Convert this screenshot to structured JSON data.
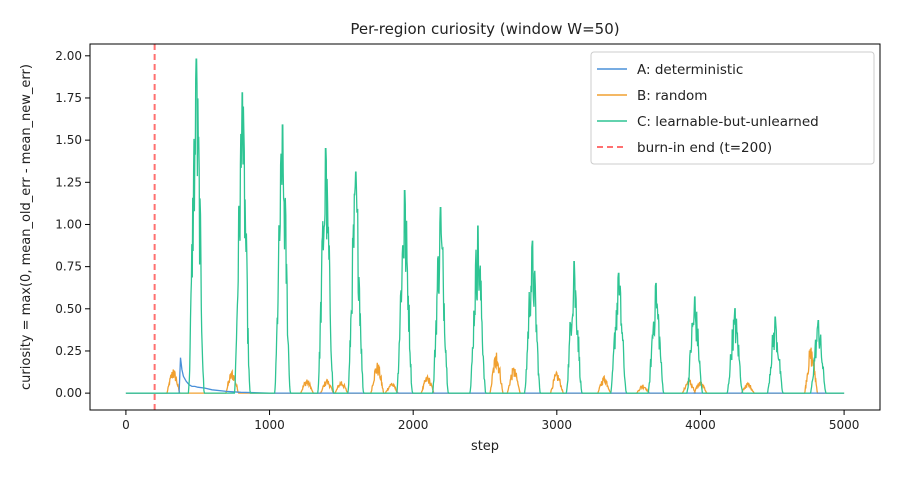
{
  "chart_data": {
    "type": "line",
    "title": "Per-region curiosity (window W=50)",
    "xlabel": "step",
    "ylabel": "curiosity = max(0, mean_old_err - mean_new_err)",
    "xlim": [
      -250,
      5250
    ],
    "ylim": [
      -0.1,
      2.07
    ],
    "xticks": [
      0,
      1000,
      2000,
      3000,
      4000,
      5000
    ],
    "xtick_labels": [
      "0",
      "1000",
      "2000",
      "3000",
      "4000",
      "5000"
    ],
    "yticks": [
      0.0,
      0.25,
      0.5,
      0.75,
      1.0,
      1.25,
      1.5,
      1.75,
      2.0
    ],
    "ytick_labels": [
      "0.00",
      "0.25",
      "0.50",
      "0.75",
      "1.00",
      "1.25",
      "1.50",
      "1.75",
      "2.00"
    ],
    "grid": false,
    "legend_position": "top-right",
    "series": [
      {
        "name": "A: deterministic",
        "color": "#4a90d9",
        "x": [
          0,
          370,
          380,
          390,
          400,
          420,
          440,
          460,
          480,
          500,
          550,
          600,
          700,
          800,
          1000,
          5000
        ],
        "y": [
          0,
          0,
          0.21,
          0.14,
          0.1,
          0.07,
          0.05,
          0.04,
          0.04,
          0.035,
          0.03,
          0.02,
          0.01,
          0.005,
          0,
          0
        ]
      },
      {
        "name": "B: random",
        "color": "#f0a030",
        "bursts": [
          {
            "center": 330,
            "peak": 0.14
          },
          {
            "center": 740,
            "peak": 0.13
          },
          {
            "center": 1260,
            "peak": 0.08
          },
          {
            "center": 1400,
            "peak": 0.08
          },
          {
            "center": 1500,
            "peak": 0.07
          },
          {
            "center": 1750,
            "peak": 0.18
          },
          {
            "center": 1850,
            "peak": 0.06
          },
          {
            "center": 2100,
            "peak": 0.1
          },
          {
            "center": 2580,
            "peak": 0.24
          },
          {
            "center": 2700,
            "peak": 0.15
          },
          {
            "center": 3000,
            "peak": 0.12
          },
          {
            "center": 3330,
            "peak": 0.1
          },
          {
            "center": 3600,
            "peak": 0.05
          },
          {
            "center": 3920,
            "peak": 0.08
          },
          {
            "center": 4000,
            "peak": 0.07
          },
          {
            "center": 4330,
            "peak": 0.06
          },
          {
            "center": 4770,
            "peak": 0.27
          }
        ]
      },
      {
        "name": "C: learnable-but-unlearned",
        "color": "#2ec493",
        "bursts": [
          {
            "center": 490,
            "peak": 1.98
          },
          {
            "center": 810,
            "peak": 1.78
          },
          {
            "center": 1090,
            "peak": 1.59
          },
          {
            "center": 1390,
            "peak": 1.45
          },
          {
            "center": 1600,
            "peak": 1.31
          },
          {
            "center": 1940,
            "peak": 1.2
          },
          {
            "center": 2190,
            "peak": 1.1
          },
          {
            "center": 2450,
            "peak": 0.99
          },
          {
            "center": 2830,
            "peak": 0.9
          },
          {
            "center": 3120,
            "peak": 0.78
          },
          {
            "center": 3430,
            "peak": 0.71
          },
          {
            "center": 3690,
            "peak": 0.65
          },
          {
            "center": 3960,
            "peak": 0.57
          },
          {
            "center": 4240,
            "peak": 0.5
          },
          {
            "center": 4520,
            "peak": 0.45
          },
          {
            "center": 4820,
            "peak": 0.43
          }
        ]
      }
    ],
    "vline": {
      "x": 200,
      "name": "burn-in end (t=200)",
      "color": "#ff7070",
      "style": "dashed"
    }
  }
}
